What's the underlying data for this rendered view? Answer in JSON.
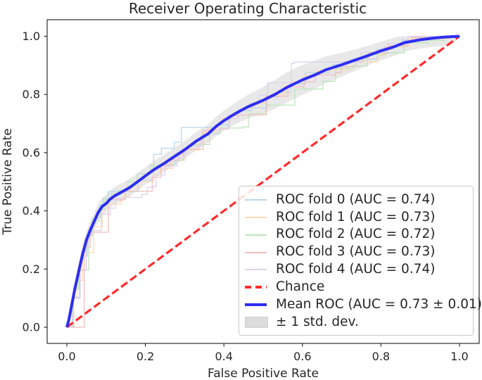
{
  "figure": {
    "title": "Receiver Operating Characteristic",
    "xlabel": "False Positive Rate",
    "ylabel": "True Positive Rate",
    "xtick_labels": [
      "0.0",
      "0.2",
      "0.4",
      "0.6",
      "0.8",
      "1.0"
    ],
    "ytick_labels": [
      "0.0",
      "0.2",
      "0.4",
      "0.6",
      "0.8",
      "1.0"
    ]
  },
  "legend": {
    "entries": [
      {
        "label": "ROC fold 0 (AUC = 0.74)",
        "swatch": "line",
        "color": "#bcd6e8"
      },
      {
        "label": "ROC fold 1 (AUC = 0.73)",
        "swatch": "line",
        "color": "#ffd9b5"
      },
      {
        "label": "ROC fold 2 (AUC = 0.72)",
        "swatch": "line",
        "color": "#bce5bc"
      },
      {
        "label": "ROC fold 3 (AUC = 0.73)",
        "swatch": "line",
        "color": "#f3bebe"
      },
      {
        "label": "ROC fold 4 (AUC = 0.74)",
        "swatch": "line",
        "color": "#dfd1eb"
      },
      {
        "label": "Chance",
        "swatch": "dashed",
        "color": "#ff2b2b"
      },
      {
        "label": "Mean ROC (AUC = 0.73 ± 0.01)",
        "swatch": "thick-line",
        "color": "#2d2df0"
      },
      {
        "label": "± 1 std. dev.",
        "swatch": "patch",
        "color": "#dcdcdc"
      }
    ]
  },
  "chart_data": {
    "type": "line",
    "title": "Receiver Operating Characteristic",
    "xlabel": "False Positive Rate",
    "ylabel": "True Positive Rate",
    "xlim": [
      -0.05,
      1.05
    ],
    "ylim": [
      -0.05,
      1.05
    ],
    "grid": false,
    "legend_position": "lower right",
    "series": [
      {
        "name": "ROC fold 0",
        "kind": "fold",
        "auc": 0.74,
        "color": "#bcd6e8"
      },
      {
        "name": "ROC fold 1",
        "kind": "fold",
        "auc": 0.73,
        "color": "#ffd9b5"
      },
      {
        "name": "ROC fold 2",
        "kind": "fold",
        "auc": 0.72,
        "color": "#bce5bc"
      },
      {
        "name": "ROC fold 3",
        "kind": "fold",
        "auc": 0.73,
        "color": "#f3bebe"
      },
      {
        "name": "ROC fold 4",
        "kind": "fold",
        "auc": 0.74,
        "color": "#dfd1eb"
      },
      {
        "name": "Chance",
        "kind": "chance",
        "color": "#ff2b2b",
        "style": "dashed",
        "points": [
          [
            0,
            0
          ],
          [
            1,
            1
          ]
        ]
      },
      {
        "name": "Mean ROC",
        "kind": "mean",
        "auc": 0.73,
        "auc_std": 0.01,
        "color": "#2d2df0",
        "points": [
          [
            0,
            0
          ],
          [
            0.005,
            0.025
          ],
          [
            0.01,
            0.06
          ],
          [
            0.015,
            0.095
          ],
          [
            0.02,
            0.13
          ],
          [
            0.03,
            0.19
          ],
          [
            0.04,
            0.25
          ],
          [
            0.05,
            0.3
          ],
          [
            0.06,
            0.335
          ],
          [
            0.07,
            0.365
          ],
          [
            0.08,
            0.395
          ],
          [
            0.09,
            0.415
          ],
          [
            0.1,
            0.425
          ],
          [
            0.11,
            0.44
          ],
          [
            0.12,
            0.45
          ],
          [
            0.14,
            0.465
          ],
          [
            0.16,
            0.48
          ],
          [
            0.18,
            0.5
          ],
          [
            0.2,
            0.52
          ],
          [
            0.22,
            0.54
          ],
          [
            0.25,
            0.565
          ],
          [
            0.28,
            0.592
          ],
          [
            0.3,
            0.61
          ],
          [
            0.33,
            0.64
          ],
          [
            0.36,
            0.665
          ],
          [
            0.38,
            0.69
          ],
          [
            0.4,
            0.71
          ],
          [
            0.43,
            0.735
          ],
          [
            0.46,
            0.757
          ],
          [
            0.5,
            0.78
          ],
          [
            0.53,
            0.8
          ],
          [
            0.56,
            0.824
          ],
          [
            0.6,
            0.85
          ],
          [
            0.63,
            0.866
          ],
          [
            0.66,
            0.885
          ],
          [
            0.7,
            0.902
          ],
          [
            0.73,
            0.916
          ],
          [
            0.76,
            0.93
          ],
          [
            0.8,
            0.95
          ],
          [
            0.83,
            0.962
          ],
          [
            0.86,
            0.978
          ],
          [
            0.9,
            0.988
          ],
          [
            0.93,
            0.993
          ],
          [
            0.96,
            0.997
          ],
          [
            1,
            1
          ]
        ]
      },
      {
        "name": "± 1 std. dev.",
        "kind": "band",
        "color": "#808080",
        "alpha": 0.18,
        "halfwidth_base": 0.03,
        "halfwidth_bulge": 0.022,
        "bulge_center": 0.58
      }
    ]
  }
}
